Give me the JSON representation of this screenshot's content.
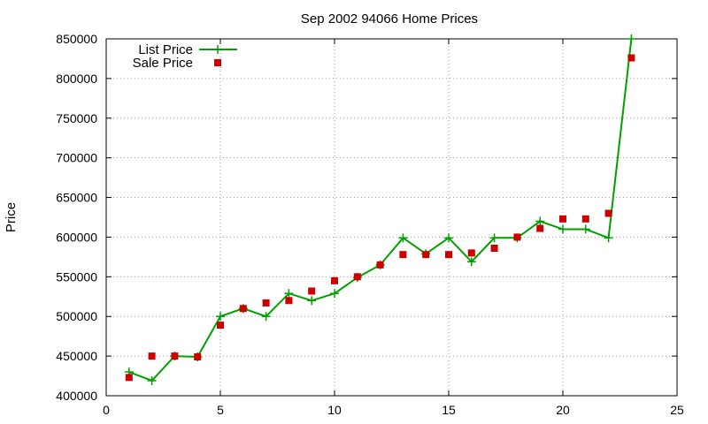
{
  "chart_data": {
    "type": "line",
    "title": "Sep 2002 94066 Home Prices",
    "xlabel": "",
    "ylabel": "Price",
    "xlim": [
      0,
      25
    ],
    "ylim": [
      400000,
      850000
    ],
    "x_ticks": [
      0,
      5,
      10,
      15,
      20,
      25
    ],
    "y_ticks": [
      400000,
      450000,
      500000,
      550000,
      600000,
      650000,
      700000,
      750000,
      800000,
      850000
    ],
    "grid": true,
    "legend_position": "top-left",
    "series": [
      {
        "name": "List Price",
        "kind": "line-with-plus-markers",
        "color": "#00a000",
        "x": [
          1,
          2,
          3,
          4,
          5,
          6,
          7,
          8,
          9,
          10,
          11,
          12,
          13,
          14,
          15,
          16,
          17,
          18,
          19,
          20,
          21,
          22,
          23
        ],
        "y": [
          430000,
          419000,
          450000,
          449000,
          500000,
          510000,
          500000,
          529000,
          520000,
          529000,
          549000,
          565000,
          599000,
          579000,
          599000,
          569000,
          599000,
          599000,
          620000,
          610000,
          610000,
          599000,
          850000
        ]
      },
      {
        "name": "Sale Price",
        "kind": "square-markers",
        "color": "#cc0000",
        "x": [
          1,
          2,
          3,
          4,
          5,
          6,
          7,
          8,
          9,
          10,
          11,
          12,
          13,
          14,
          15,
          16,
          17,
          18,
          19,
          20,
          21,
          22,
          23
        ],
        "y": [
          423000,
          450000,
          450000,
          449000,
          489000,
          510000,
          517000,
          520000,
          532000,
          545000,
          550000,
          565000,
          578000,
          578000,
          578000,
          580000,
          586000,
          600000,
          611000,
          623000,
          623000,
          630000,
          826000
        ]
      }
    ]
  }
}
